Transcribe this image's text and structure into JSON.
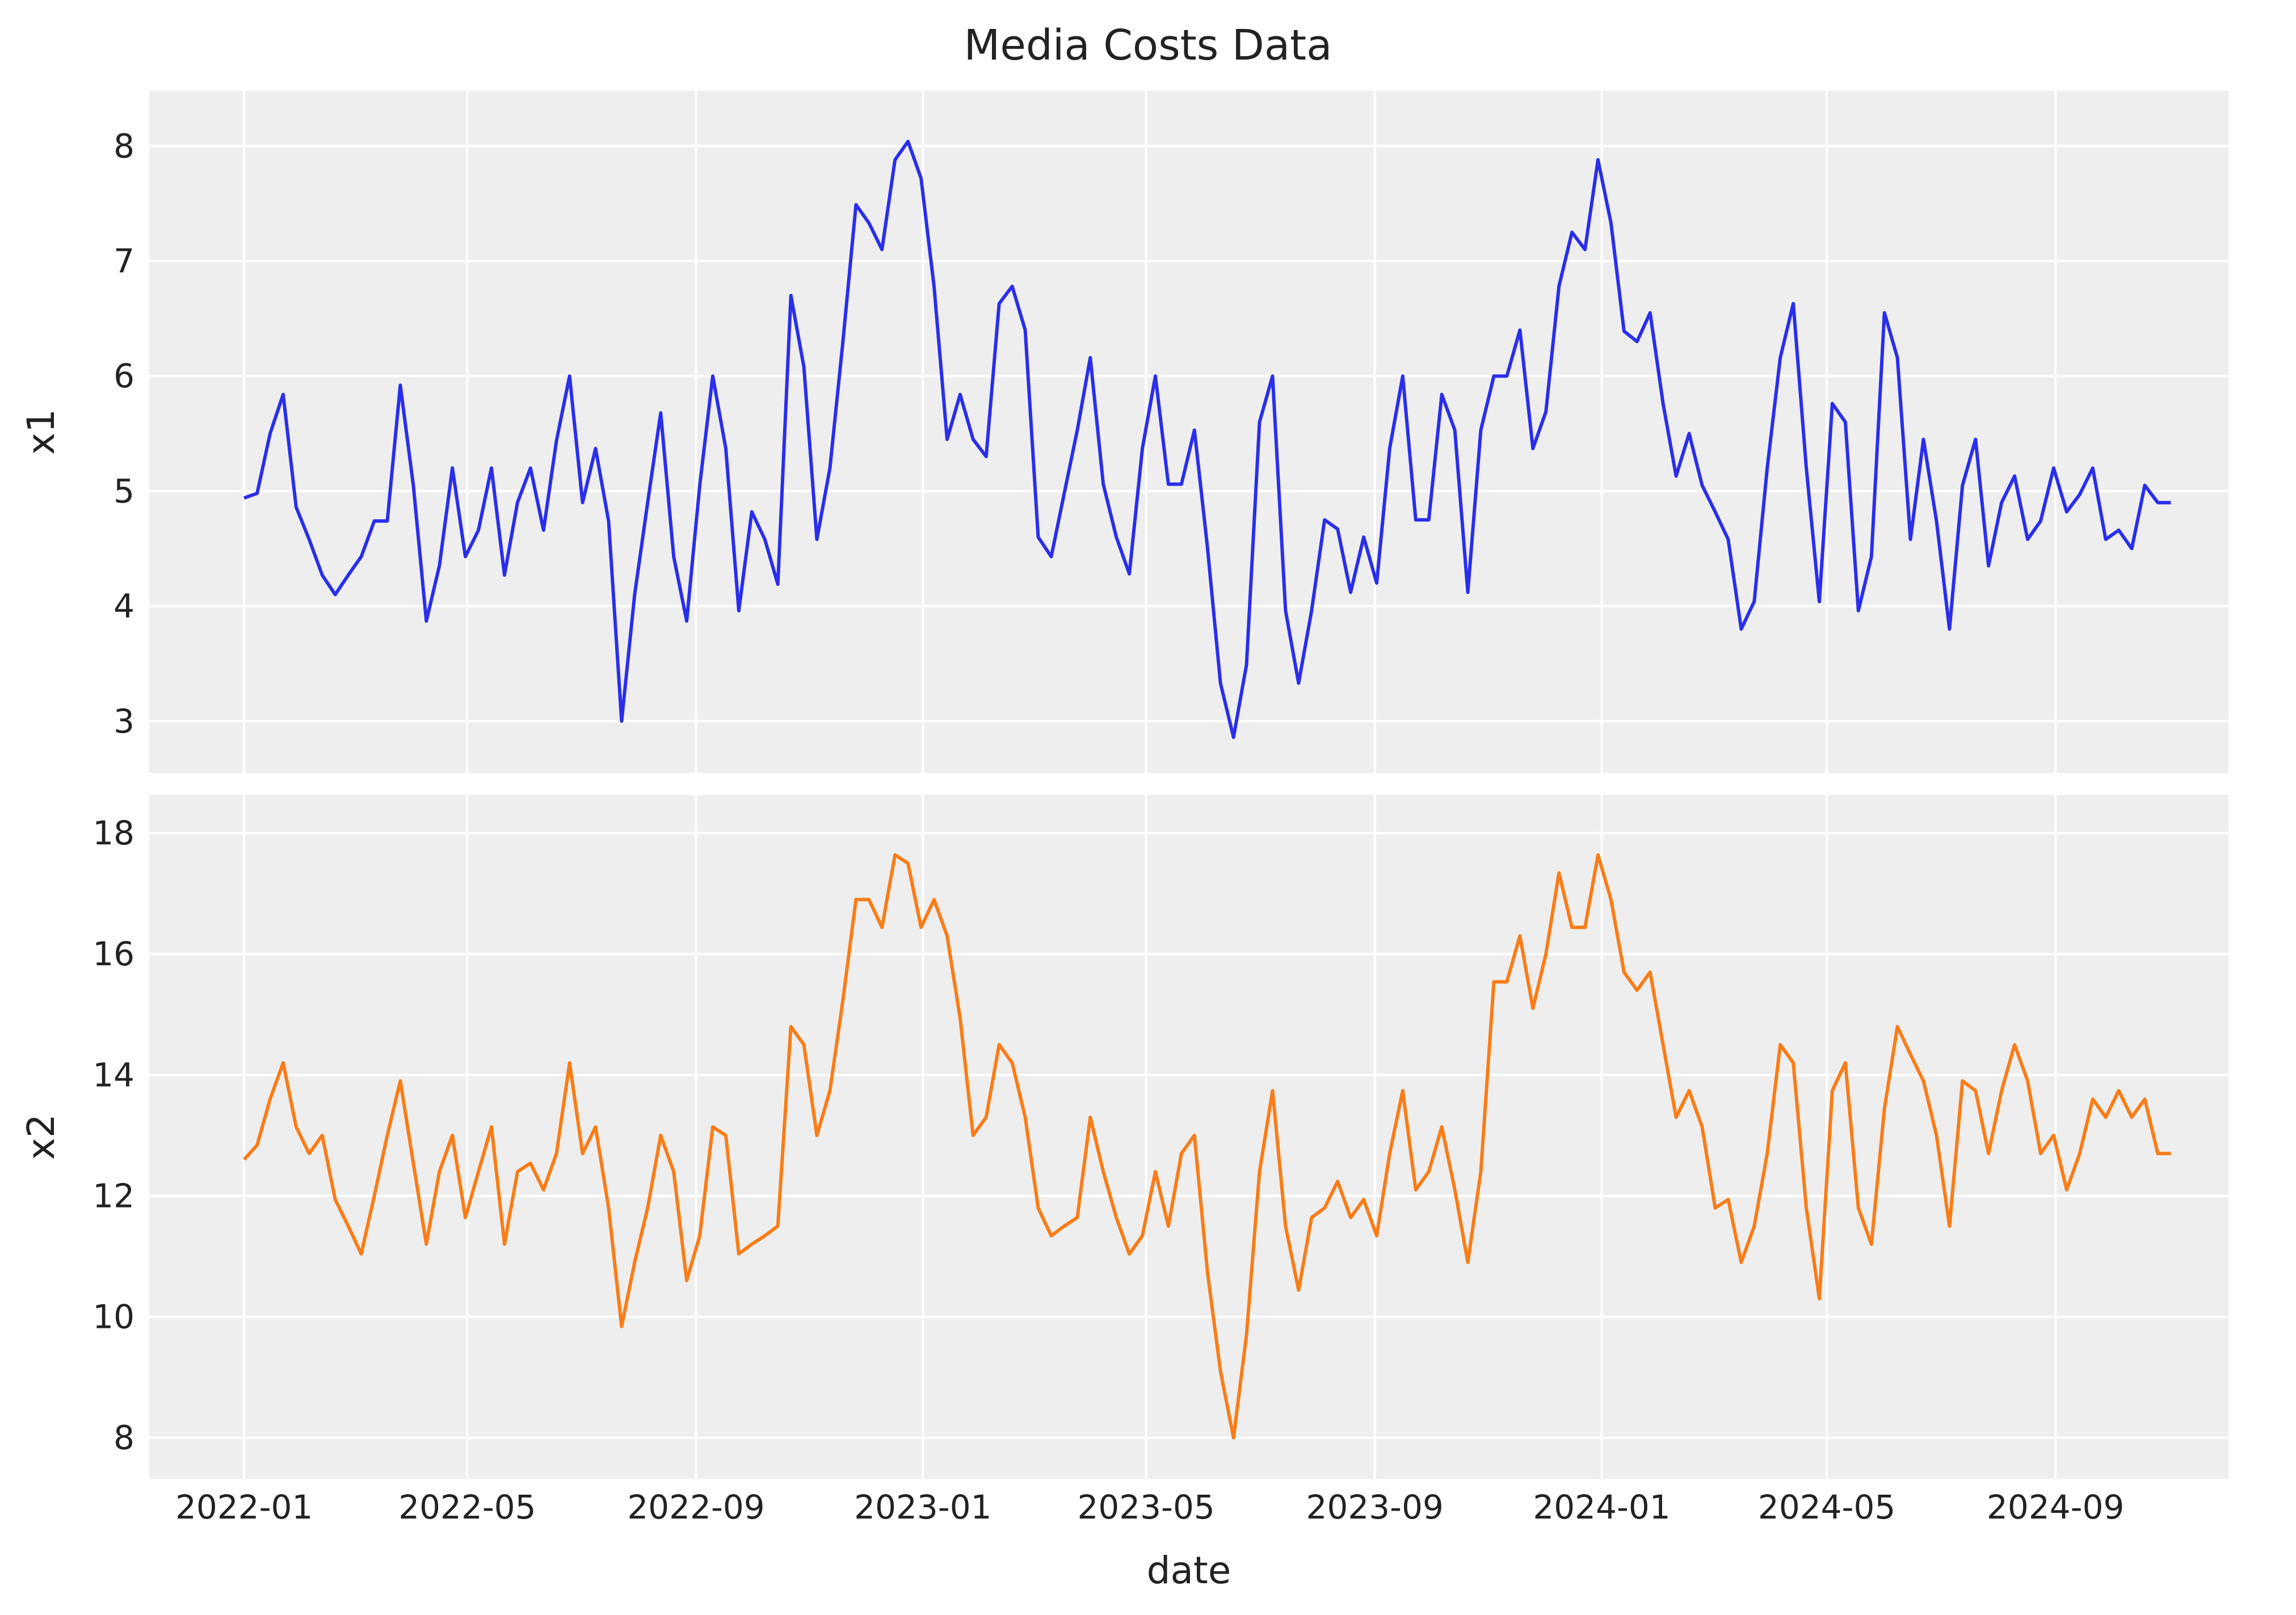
{
  "chart_data": {
    "type": "line",
    "title": "Media Costs Data",
    "xlabel": "date",
    "x_ticks": [
      "2022-01",
      "2022-05",
      "2022-09",
      "2023-01",
      "2023-05",
      "2023-09",
      "2024-01",
      "2024-05",
      "2024-09"
    ],
    "xlim": [
      "2021-11-11",
      "2024-12-03"
    ],
    "grid": true,
    "legend": "none",
    "x": [
      "2022-01-01",
      "2022-01-08",
      "2022-01-15",
      "2022-01-22",
      "2022-01-29",
      "2022-02-05",
      "2022-02-12",
      "2022-02-19",
      "2022-02-26",
      "2022-03-05",
      "2022-03-12",
      "2022-03-19",
      "2022-03-26",
      "2022-04-02",
      "2022-04-09",
      "2022-04-16",
      "2022-04-23",
      "2022-04-30",
      "2022-05-07",
      "2022-05-14",
      "2022-05-21",
      "2022-05-28",
      "2022-06-04",
      "2022-06-11",
      "2022-06-18",
      "2022-06-25",
      "2022-07-02",
      "2022-07-09",
      "2022-07-16",
      "2022-07-23",
      "2022-07-30",
      "2022-08-06",
      "2022-08-13",
      "2022-08-20",
      "2022-08-27",
      "2022-09-03",
      "2022-09-10",
      "2022-09-17",
      "2022-09-24",
      "2022-10-01",
      "2022-10-08",
      "2022-10-15",
      "2022-10-22",
      "2022-10-29",
      "2022-11-05",
      "2022-11-12",
      "2022-11-19",
      "2022-11-26",
      "2022-12-03",
      "2022-12-10",
      "2022-12-17",
      "2022-12-24",
      "2022-12-31",
      "2023-01-07",
      "2023-01-14",
      "2023-01-21",
      "2023-01-28",
      "2023-02-04",
      "2023-02-11",
      "2023-02-18",
      "2023-02-25",
      "2023-03-04",
      "2023-03-11",
      "2023-03-18",
      "2023-03-25",
      "2023-04-01",
      "2023-04-08",
      "2023-04-15",
      "2023-04-22",
      "2023-04-29",
      "2023-05-06",
      "2023-05-13",
      "2023-05-20",
      "2023-05-27",
      "2023-06-03",
      "2023-06-10",
      "2023-06-17",
      "2023-06-24",
      "2023-07-01",
      "2023-07-08",
      "2023-07-15",
      "2023-07-22",
      "2023-07-29",
      "2023-08-05",
      "2023-08-12",
      "2023-08-19",
      "2023-08-26",
      "2023-09-02",
      "2023-09-09",
      "2023-09-16",
      "2023-09-23",
      "2023-09-30",
      "2023-10-07",
      "2023-10-14",
      "2023-10-21",
      "2023-10-28",
      "2023-11-04",
      "2023-11-11",
      "2023-11-18",
      "2023-11-25",
      "2023-12-02",
      "2023-12-09",
      "2023-12-16",
      "2023-12-23",
      "2023-12-30",
      "2024-01-06",
      "2024-01-13",
      "2024-01-20",
      "2024-01-27",
      "2024-02-03",
      "2024-02-10",
      "2024-02-17",
      "2024-02-24",
      "2024-03-02",
      "2024-03-09",
      "2024-03-16",
      "2024-03-23",
      "2024-03-30",
      "2024-04-06",
      "2024-04-13",
      "2024-04-20",
      "2024-04-27",
      "2024-05-04",
      "2024-05-11",
      "2024-05-18",
      "2024-05-25",
      "2024-06-01",
      "2024-06-08",
      "2024-06-15",
      "2024-06-22",
      "2024-06-29",
      "2024-07-06",
      "2024-07-13",
      "2024-07-20",
      "2024-07-27",
      "2024-08-03",
      "2024-08-10",
      "2024-08-17",
      "2024-08-24",
      "2024-08-31",
      "2024-09-07",
      "2024-09-14",
      "2024-09-21",
      "2024-09-28",
      "2024-10-05",
      "2024-10-12",
      "2024-10-19",
      "2024-10-26",
      "2024-11-02"
    ],
    "panels": [
      {
        "ylabel": "x1",
        "ylim": [
          2.55,
          8.48
        ],
        "y_ticks": [
          3,
          4,
          5,
          6,
          7,
          8
        ],
        "color": "#2a2eec",
        "values": [
          4.94,
          4.98,
          5.5,
          5.84,
          4.86,
          4.58,
          4.27,
          4.1,
          4.27,
          4.43,
          4.74,
          4.74,
          5.92,
          5.05,
          3.87,
          4.35,
          5.2,
          4.43,
          4.66,
          5.2,
          4.27,
          4.9,
          5.2,
          4.66,
          5.44,
          6.0,
          4.9,
          5.37,
          4.74,
          3.0,
          4.1,
          4.9,
          5.68,
          4.43,
          3.87,
          5.05,
          6.0,
          5.37,
          3.96,
          4.82,
          4.58,
          4.19,
          6.7,
          6.08,
          4.58,
          5.2,
          6.3,
          7.49,
          7.33,
          7.1,
          7.88,
          8.04,
          7.72,
          6.78,
          5.45,
          5.84,
          5.45,
          5.3,
          6.63,
          6.78,
          6.4,
          4.6,
          4.43,
          4.98,
          5.53,
          6.16,
          5.06,
          4.6,
          4.28,
          5.37,
          6.0,
          5.06,
          5.06,
          5.53,
          4.51,
          3.33,
          2.86,
          3.49,
          5.6,
          6.0,
          3.96,
          3.33,
          3.96,
          4.75,
          4.67,
          4.12,
          4.6,
          4.2,
          5.37,
          6.0,
          4.75,
          4.75,
          5.84,
          5.53,
          4.12,
          5.53,
          6.0,
          6.0,
          6.4,
          5.37,
          5.69,
          6.78,
          7.25,
          7.1,
          7.88,
          7.33,
          6.39,
          6.3,
          6.55,
          5.76,
          5.13,
          5.5,
          5.05,
          4.82,
          4.58,
          3.8,
          4.04,
          5.2,
          6.16,
          6.63,
          5.2,
          4.04,
          5.76,
          5.6,
          3.96,
          4.43,
          6.55,
          6.16,
          4.58,
          5.45,
          4.74,
          3.8,
          5.05,
          5.45,
          4.35,
          4.9,
          5.13,
          4.58,
          4.74,
          5.2,
          4.82,
          4.97,
          5.2,
          4.58,
          4.66,
          4.5,
          5.05,
          4.9,
          4.9
        ]
      },
      {
        "ylabel": "x2",
        "ylim": [
          7.32,
          18.63
        ],
        "y_ticks": [
          8,
          10,
          12,
          14,
          16,
          18
        ],
        "color": "#fa7c17",
        "values": [
          12.6,
          12.84,
          13.6,
          14.2,
          13.14,
          12.7,
          13.0,
          11.94,
          11.5,
          11.04,
          12.0,
          13.0,
          13.9,
          12.54,
          11.2,
          12.4,
          13.0,
          11.64,
          12.4,
          13.14,
          11.2,
          12.4,
          12.54,
          12.1,
          12.7,
          14.2,
          12.7,
          13.14,
          11.8,
          9.84,
          10.9,
          11.8,
          13.0,
          12.4,
          10.6,
          11.34,
          13.14,
          13.0,
          11.04,
          11.2,
          11.34,
          11.5,
          14.8,
          14.5,
          13.0,
          13.74,
          15.24,
          16.9,
          16.9,
          16.44,
          17.64,
          17.5,
          16.44,
          16.9,
          16.3,
          14.94,
          13.0,
          13.3,
          14.5,
          14.2,
          13.3,
          11.8,
          11.34,
          11.5,
          11.64,
          13.3,
          12.4,
          11.64,
          11.04,
          11.34,
          12.4,
          11.5,
          12.7,
          13.0,
          10.74,
          9.1,
          8.0,
          9.7,
          12.4,
          13.74,
          11.5,
          10.44,
          11.64,
          11.8,
          12.24,
          11.64,
          11.94,
          11.34,
          12.7,
          13.74,
          12.1,
          12.4,
          13.14,
          12.1,
          10.9,
          12.4,
          15.54,
          15.54,
          16.3,
          15.1,
          16.0,
          17.34,
          16.44,
          16.44,
          17.64,
          16.9,
          15.7,
          15.4,
          15.7,
          14.5,
          13.3,
          13.74,
          13.14,
          11.8,
          11.94,
          10.9,
          11.5,
          12.7,
          14.5,
          14.2,
          11.8,
          10.3,
          13.74,
          14.2,
          11.8,
          11.2,
          13.44,
          14.8,
          14.34,
          13.9,
          13.0,
          11.5,
          13.9,
          13.74,
          12.7,
          13.74,
          14.5,
          13.9,
          12.7,
          13.0,
          12.1,
          12.7,
          13.6,
          13.3,
          13.74,
          13.3,
          13.6,
          12.7,
          12.7
        ]
      }
    ]
  }
}
